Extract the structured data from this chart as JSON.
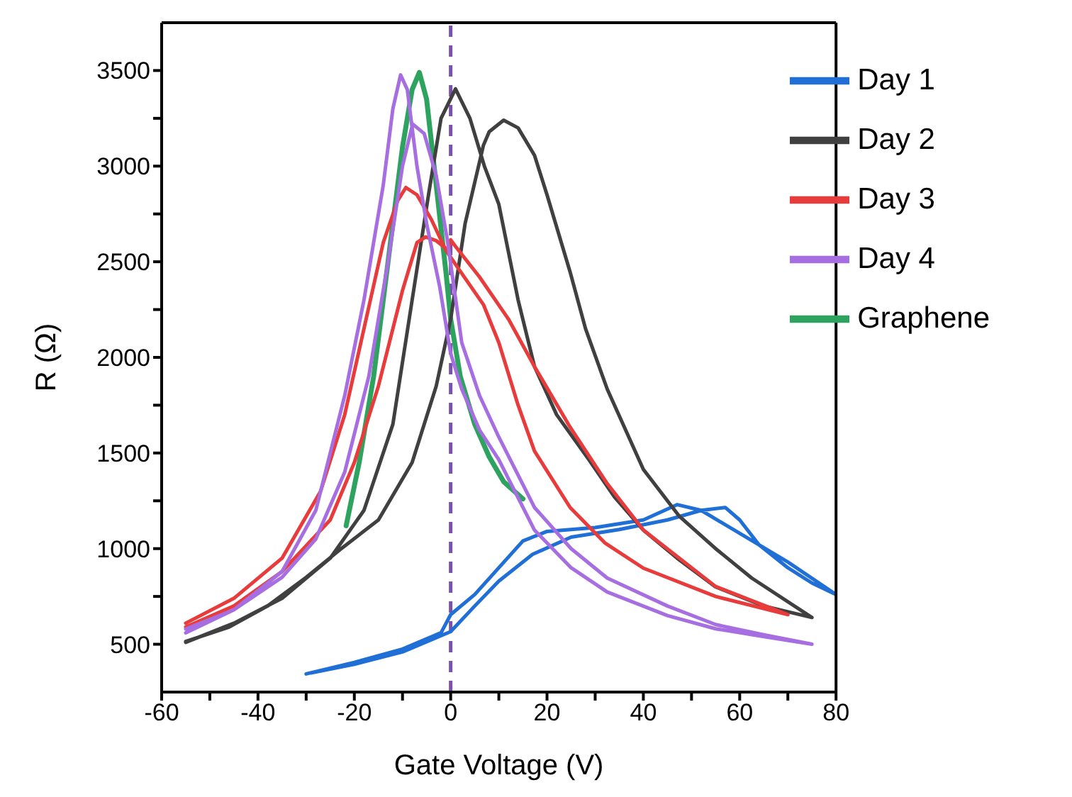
{
  "chart_data": {
    "type": "line",
    "xlabel": "Gate Voltage (V)",
    "ylabel": "R (Ω)",
    "xlim": [
      -60,
      80
    ],
    "xticks": [
      -60,
      {
        "value": -50,
        "label": null
      },
      -40,
      {
        "value": -30,
        "label": null
      },
      -20,
      {
        "value": -10,
        "label": null
      },
      0,
      {
        "value": 10,
        "label": null
      },
      20,
      {
        "value": 30,
        "label": null
      },
      40,
      {
        "value": 50,
        "label": null
      },
      60,
      {
        "value": 70,
        "label": null
      },
      80
    ],
    "ylim": [
      250,
      3750
    ],
    "yticks": [
      500,
      {
        "value": 750,
        "label": null
      },
      1000,
      {
        "value": 1250,
        "label": null
      },
      1500,
      {
        "value": 1750,
        "label": null
      },
      2000,
      {
        "value": 2250,
        "label": null
      },
      2500,
      {
        "value": 2750,
        "label": null
      },
      3000,
      {
        "value": 3250,
        "label": null
      },
      3500
    ],
    "grid": false,
    "legend": "top right",
    "marker": "none",
    "line_style": "solid",
    "ref_lines": [
      {
        "axis": "x",
        "value": 0,
        "color": "#7b52ab",
        "line_style": "dashed"
      }
    ],
    "series": [
      {
        "name": "Graphene",
        "color": "#2ea35f",
        "x": [
          -21.7,
          -19,
          -16,
          -13,
          -10,
          -8,
          -6.5,
          -5,
          -3,
          -1,
          0,
          2,
          5,
          8,
          11,
          15
        ],
        "values": [
          1120,
          1450,
          1900,
          2500,
          3100,
          3400,
          3490,
          3350,
          2900,
          2450,
          2200,
          1900,
          1650,
          1480,
          1350,
          1260
        ]
      },
      {
        "name": "Day 1",
        "color": "#1f6fd6",
        "x": [
          -30,
          -20,
          -10,
          -2,
          0,
          5,
          10,
          15,
          20,
          30,
          40,
          47,
          52,
          60,
          70,
          80,
          75,
          70,
          64,
          60,
          57,
          52,
          45,
          35,
          25,
          17,
          10,
          5,
          0,
          -10,
          -20,
          -29
        ],
        "values": [
          345,
          405,
          475,
          560,
          655,
          760,
          900,
          1040,
          1090,
          1110,
          1150,
          1230,
          1200,
          1080,
          930,
          760,
          820,
          900,
          1020,
          1150,
          1215,
          1200,
          1150,
          1100,
          1060,
          970,
          830,
          700,
          566,
          460,
          395,
          350
        ]
      },
      {
        "name": "Day 2",
        "color": "#404040",
        "x": [
          -55,
          -45,
          -35,
          -25,
          -18,
          -12,
          -8,
          -4.5,
          -2,
          1,
          4,
          7,
          10,
          14,
          17.4,
          22,
          28.7,
          34,
          40,
          47,
          55,
          65,
          75,
          62.5,
          55,
          47.4,
          40,
          32.5,
          28,
          24.8,
          20,
          17.4,
          14,
          11,
          8,
          6.8,
          3,
          0,
          -3,
          -8,
          -15,
          -23,
          -30,
          -38,
          -46,
          -55
        ],
        "values": [
          510,
          610,
          740,
          950,
          1200,
          1650,
          2300,
          2866,
          3250,
          3404,
          3250,
          3000,
          2800,
          2300,
          1952,
          1700,
          1465,
          1270,
          1097,
          950,
          800,
          700,
          640,
          846,
          1000,
          1171,
          1414,
          1834,
          2150,
          2446,
          2850,
          3057,
          3200,
          3240,
          3180,
          3109,
          2700,
          2200,
          1850,
          1450,
          1150,
          994,
          850,
          700,
          590,
          515
        ]
      },
      {
        "name": "Day 3",
        "color": "#e83b3b",
        "x": [
          -55,
          -45,
          -35,
          -27,
          -22,
          -18,
          -14,
          -11,
          -9.3,
          -7,
          -4,
          -1,
          2,
          6.8,
          10,
          14,
          17.4,
          24.8,
          32,
          40,
          55,
          70,
          55,
          40,
          32.5,
          24.8,
          17.4,
          12,
          6,
          1,
          0,
          -0.5,
          -3,
          -5.2,
          -7,
          -10,
          -15,
          -20,
          -25,
          -35,
          -45,
          -55
        ],
        "values": [
          610,
          740,
          950,
          1300,
          1700,
          2150,
          2600,
          2820,
          2888,
          2850,
          2720,
          2560,
          2450,
          2276,
          2077,
          1750,
          1510,
          1215,
          1030,
          898,
          750,
          655,
          802,
          1097,
          1340,
          1635,
          1952,
          2200,
          2420,
          2580,
          2615,
          2560,
          2610,
          2630,
          2600,
          2350,
          1850,
          1450,
          1150,
          880,
          700,
          590
        ]
      },
      {
        "name": "Day 4",
        "color": "#a66ee0",
        "x": [
          -55,
          -45,
          -35,
          -28,
          -22,
          -18,
          -14,
          -12,
          -10.4,
          -9,
          -7,
          -5,
          -2.3,
          0,
          2.3,
          6,
          10,
          17.4,
          25,
          32.5,
          45,
          55,
          65,
          75,
          65,
          55,
          45,
          32.5,
          25,
          17.4,
          10,
          6,
          2.3,
          -0.7,
          -3,
          -5.5,
          -7.9,
          -10,
          -13,
          -17,
          -22,
          -28,
          -35,
          -45,
          -55
        ],
        "values": [
          560,
          680,
          880,
          1200,
          1800,
          2300,
          2900,
          3300,
          3477,
          3400,
          3000,
          2700,
          2372,
          2020,
          1834,
          1620,
          1465,
          1097,
          900,
          773,
          650,
          581,
          540,
          500,
          550,
          603,
          700,
          846,
          1000,
          1215,
          1583,
          1800,
          2077,
          2615,
          2950,
          3170,
          3220,
          3000,
          2500,
          1900,
          1400,
          1050,
          850,
          680,
          580
        ]
      }
    ]
  }
}
